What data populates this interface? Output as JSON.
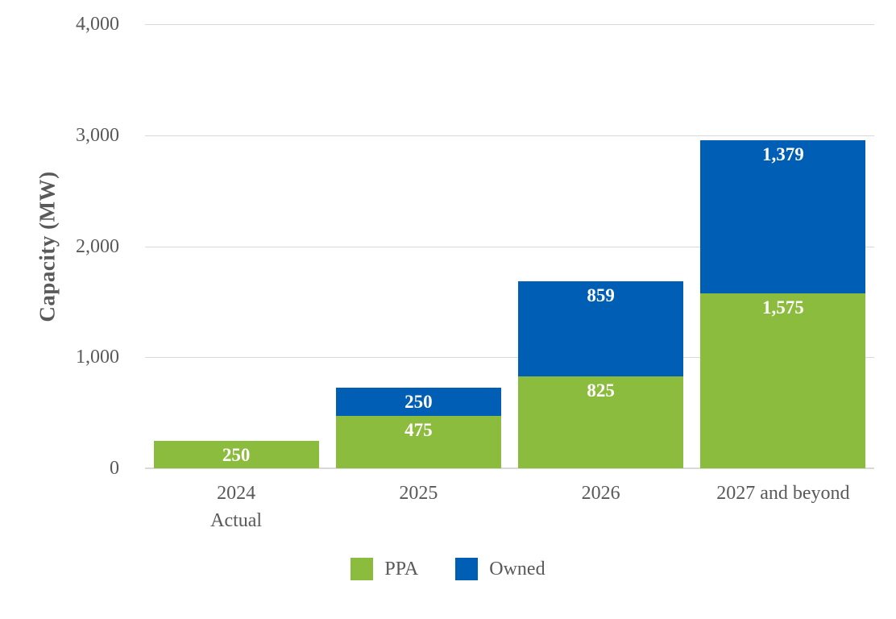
{
  "chart_data": {
    "type": "bar",
    "stacked": true,
    "title": "",
    "ylabel": "Capacity (MW)",
    "xlabel": "",
    "ylim": [
      0,
      4000
    ],
    "ytick_interval": 1000,
    "grid": true,
    "legend_position": "bottom",
    "yticks": [
      {
        "value": 0,
        "label": "0"
      },
      {
        "value": 1000,
        "label": "1,000"
      },
      {
        "value": 2000,
        "label": "2,000"
      },
      {
        "value": 3000,
        "label": "3,000"
      },
      {
        "value": 4000,
        "label": "4,000"
      }
    ],
    "categories": [
      {
        "lines": [
          "2024",
          "Actual"
        ]
      },
      {
        "lines": [
          "2025"
        ]
      },
      {
        "lines": [
          "2026"
        ]
      },
      {
        "lines": [
          "2027 and beyond"
        ]
      }
    ],
    "series": [
      {
        "name": "PPA",
        "color": "#8BBC3E",
        "values": [
          250,
          475,
          825,
          1575
        ],
        "labels": [
          "250",
          "475",
          "825",
          "1,575"
        ]
      },
      {
        "name": "Owned",
        "color": "#005EB4",
        "values": [
          0,
          250,
          859,
          1379
        ],
        "labels": [
          "",
          "250",
          "859",
          "1,379"
        ]
      }
    ],
    "totals": [
      250,
      725,
      1684,
      2954
    ],
    "styles": {
      "text_color": "#595959",
      "gridline_color": "#D9D9D9",
      "axis_line_color": "#D9D9D9",
      "data_label_color": "#FFFFFF",
      "background": "#FFFFFF"
    }
  }
}
